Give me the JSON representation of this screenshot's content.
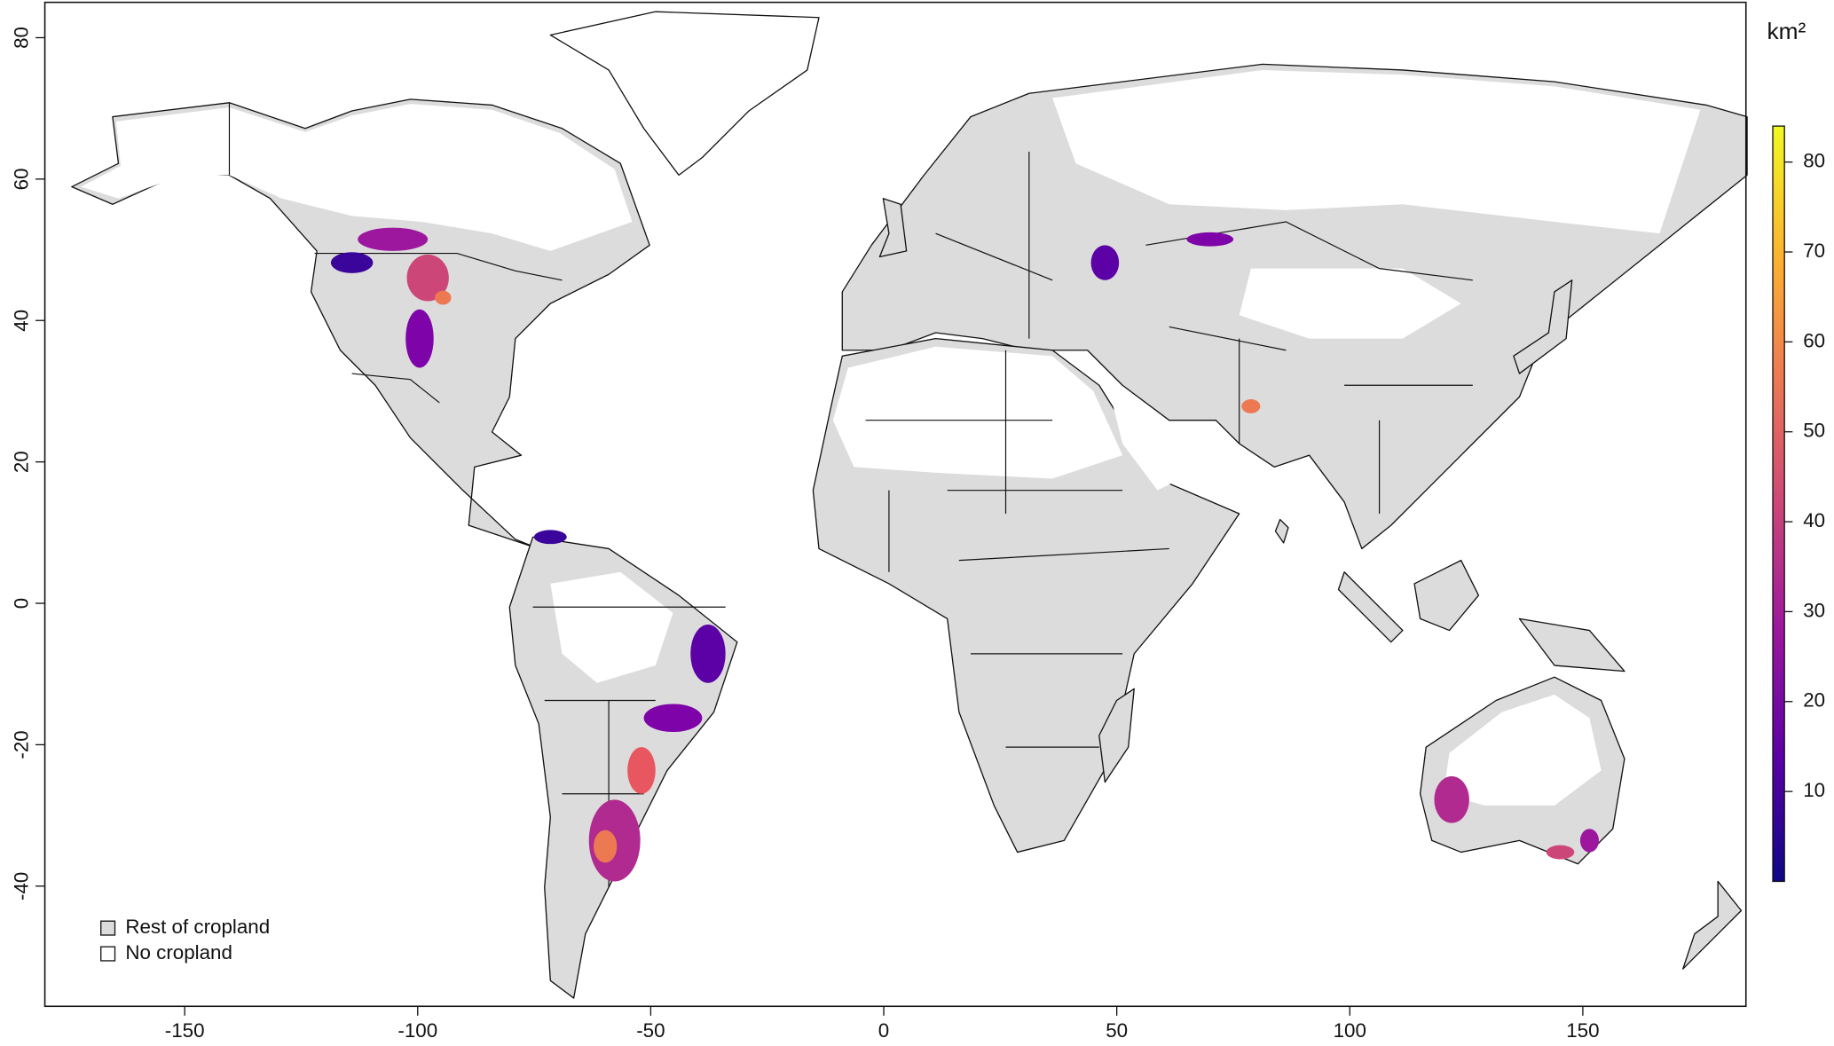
{
  "map": {
    "xlim": [
      -180,
      185
    ],
    "ylim": [
      -57,
      85
    ],
    "xticks": [
      -150,
      -100,
      -50,
      0,
      50,
      100,
      150
    ],
    "yticks": [
      -40,
      -20,
      0,
      20,
      40,
      60,
      80
    ],
    "colorbar": {
      "title": "km²",
      "lim": [
        0,
        84
      ],
      "ticks": [
        10,
        20,
        30,
        40,
        50,
        60,
        70,
        80
      ],
      "colors": [
        "#0d0887",
        "#5c01a6",
        "#9c179e",
        "#cc4778",
        "#ed7953",
        "#fdb42f",
        "#f0f921"
      ]
    },
    "legend": [
      {
        "label": "Rest of cropland",
        "color": "#dcdcdc"
      },
      {
        "label": "No cropland",
        "color": "#ffffff"
      }
    ]
  }
}
